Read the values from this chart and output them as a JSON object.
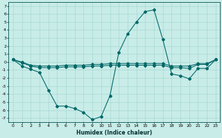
{
  "xlabel": "Humidex (Indice chaleur)",
  "bg_color": "#c8ece8",
  "grid_color": "#a8d8d0",
  "line_color": "#006868",
  "xlim": [
    -0.5,
    23.5
  ],
  "ylim": [
    -7.5,
    7.5
  ],
  "xticks": [
    0,
    1,
    2,
    3,
    4,
    5,
    6,
    7,
    8,
    9,
    10,
    11,
    12,
    13,
    14,
    15,
    16,
    17,
    18,
    19,
    20,
    21,
    22,
    23
  ],
  "yticks": [
    -7,
    -6,
    -5,
    -4,
    -3,
    -2,
    -1,
    0,
    1,
    2,
    3,
    4,
    5,
    6,
    7
  ],
  "curve1_x": [
    0,
    1,
    2,
    3,
    4,
    5,
    6,
    7,
    8,
    9,
    10,
    11,
    12,
    13,
    14,
    15,
    16,
    17,
    18,
    19,
    20,
    21,
    22,
    23
  ],
  "curve1_y": [
    0.3,
    -0.5,
    -0.9,
    -1.3,
    -3.5,
    -5.5,
    -5.5,
    -5.8,
    -6.3,
    -7.2,
    -6.8,
    -4.2,
    1.2,
    3.5,
    5.0,
    6.3,
    6.5,
    2.8,
    -1.5,
    -1.7,
    -2.1,
    -0.8,
    -0.8,
    0.3
  ],
  "curve2_x": [
    0,
    1,
    2,
    3,
    4,
    5,
    6,
    7,
    8,
    9,
    10,
    11,
    12,
    13,
    14,
    15,
    16,
    17,
    18,
    19,
    20,
    21,
    22,
    23
  ],
  "curve2_y": [
    0.3,
    0.0,
    -0.4,
    -0.5,
    -0.5,
    -0.5,
    -0.4,
    -0.4,
    -0.4,
    -0.3,
    -0.3,
    -0.2,
    -0.2,
    -0.2,
    -0.2,
    -0.2,
    -0.2,
    -0.2,
    -0.5,
    -0.5,
    -0.5,
    -0.2,
    -0.2,
    0.3
  ],
  "curve3_x": [
    0,
    1,
    2,
    3,
    4,
    5,
    6,
    7,
    8,
    9,
    10,
    11,
    12,
    13,
    14,
    15,
    16,
    17,
    18,
    19,
    20,
    21,
    22,
    23
  ],
  "curve3_y": [
    0.3,
    -0.1,
    -0.5,
    -0.7,
    -0.7,
    -0.7,
    -0.6,
    -0.6,
    -0.6,
    -0.5,
    -0.5,
    -0.4,
    -0.4,
    -0.4,
    -0.4,
    -0.4,
    -0.4,
    -0.4,
    -0.7,
    -0.7,
    -0.8,
    -0.3,
    -0.3,
    0.3
  ]
}
